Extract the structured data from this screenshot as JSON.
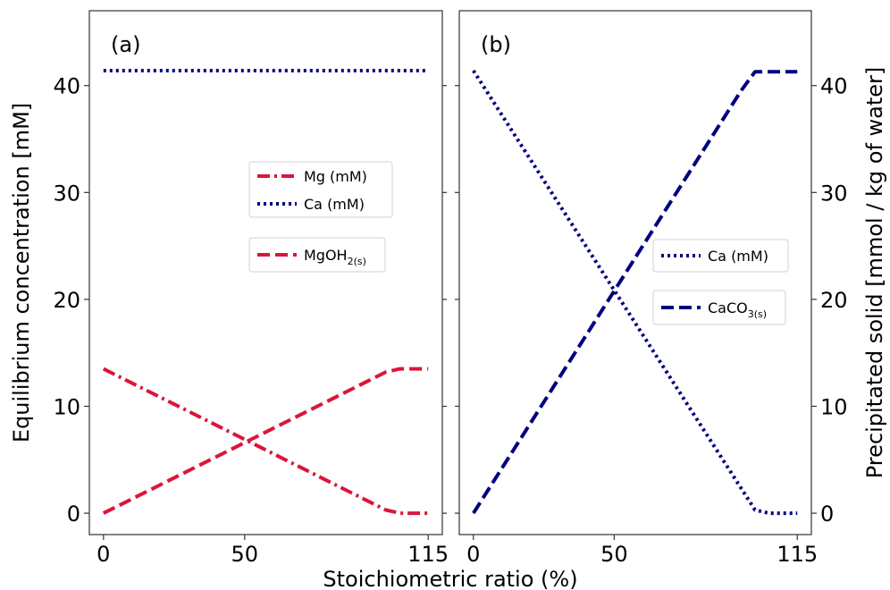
{
  "figure": {
    "xlabel": "Stoichiometric ratio (%)",
    "ylabel_left": "Equilibrium concentration [mM]",
    "ylabel_right": "Precipitated solid [mmol / kg of water]"
  },
  "colors": {
    "mg": "#dc143c",
    "ca": "#000080"
  },
  "chart_data": [
    {
      "type": "line",
      "panel": "a",
      "label": "(a)",
      "xlim": [
        -5,
        120
      ],
      "ylim": [
        -2,
        47
      ],
      "xticks": [
        0,
        50,
        115
      ],
      "yticks": [
        0,
        10,
        20,
        30,
        40
      ],
      "legend_placement": "center-right",
      "series": [
        {
          "key": "mg",
          "name": "Mg (mM)",
          "style": "dashdot",
          "color": "#dc143c",
          "x": [
            0,
            100,
            105,
            115
          ],
          "y": [
            13.5,
            0.3,
            0.0,
            0.0
          ]
        },
        {
          "key": "ca",
          "name": "Ca (mM)",
          "style": "dotted",
          "color": "#000080",
          "x": [
            0,
            115
          ],
          "y": [
            41.4,
            41.4
          ]
        },
        {
          "key": "mgoh",
          "name": "MgOH",
          "name_sub": "2(s)",
          "style": "dashed",
          "color": "#dc143c",
          "x": [
            0,
            100,
            105,
            115
          ],
          "y": [
            0.0,
            13.2,
            13.5,
            13.5
          ]
        }
      ]
    },
    {
      "type": "line",
      "panel": "b",
      "label": "(b)",
      "xlim": [
        -5,
        120
      ],
      "ylim": [
        -2,
        47
      ],
      "xticks": [
        0,
        50,
        115
      ],
      "yticks": [
        0,
        10,
        20,
        30,
        40
      ],
      "legend_placement": "center-right",
      "series": [
        {
          "key": "ca",
          "name": "Ca (mM)",
          "style": "dotted",
          "color": "#000080",
          "x": [
            0,
            100,
            105,
            115
          ],
          "y": [
            41.4,
            0.3,
            0.0,
            0.0
          ]
        },
        {
          "key": "caco3",
          "name": "CaCO",
          "name_sub": "3(s)",
          "style": "dashed",
          "color": "#000080",
          "x": [
            0,
            95,
            100,
            115
          ],
          "y": [
            0.0,
            39.5,
            41.3,
            41.3
          ]
        }
      ]
    }
  ]
}
